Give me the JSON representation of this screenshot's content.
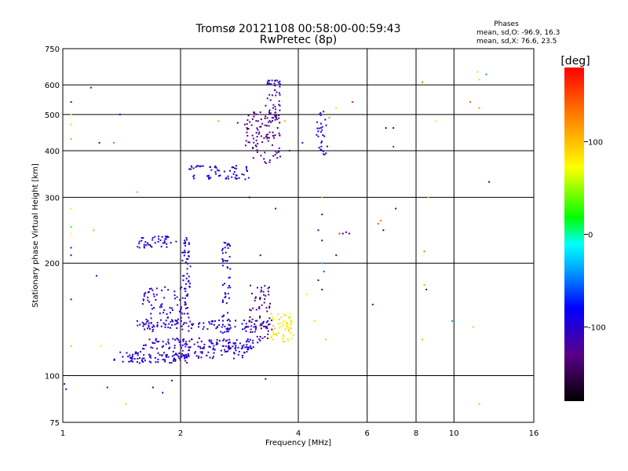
{
  "chart_data": {
    "type": "scatter",
    "title": "Tromsø 20121108 00:58:00-00:59:43",
    "subtitle": "RwPretec (8p)",
    "xlabel": "Frequency [MHz]",
    "ylabel": "Stationary phase Virtual Height [km]",
    "x_scale": "log",
    "y_scale": "log",
    "xlim": [
      1,
      16
    ],
    "ylim": [
      75,
      750
    ],
    "x_ticks": [
      "1",
      "2",
      "4",
      "6",
      "8",
      "10",
      "16"
    ],
    "x_tick_values": [
      1,
      2,
      4,
      6,
      8,
      10,
      16
    ],
    "y_ticks": [
      "75",
      "100",
      "200",
      "300",
      "400",
      "500",
      "600",
      "750"
    ],
    "y_tick_values": [
      75,
      100,
      200,
      300,
      400,
      500,
      600,
      750
    ],
    "grid": true,
    "stats_header": "Phases",
    "stats": [
      "mean, sd,O: -96.9, 16.3",
      "mean, sd,X:  76.6, 23.5"
    ],
    "colorbar": {
      "label": "[deg]",
      "range": [
        -180,
        180
      ],
      "ticks": [
        "100",
        "0",
        "-100"
      ],
      "tick_values": [
        100,
        0,
        -100
      ]
    },
    "clusters": [
      {
        "region": "low-band O trace",
        "x_range": [
          1.35,
          2.1
        ],
        "y_center": 112,
        "y_spread": 4,
        "phase": -100,
        "count": 90
      },
      {
        "region": "low-band lower ridge",
        "x_range": [
          2.0,
          3.0
        ],
        "y_center": 116,
        "y_spread": 5,
        "phase": -105,
        "count": 70
      },
      {
        "region": "mid ridge 120",
        "x_range": [
          1.6,
          3.2
        ],
        "y_center": 122,
        "y_spread": 4,
        "phase": -100,
        "count": 110
      },
      {
        "region": "ridge 135",
        "x_range": [
          1.55,
          3.5
        ],
        "y_center": 136,
        "y_spread": 5,
        "phase": -100,
        "count": 110
      },
      {
        "region": "rising trace 150-190",
        "x_range": [
          1.6,
          2.1
        ],
        "y_center": 155,
        "y_spread": 18,
        "phase": -100,
        "count": 80
      },
      {
        "region": "E cusp column",
        "x_range": [
          2.02,
          2.12
        ],
        "y_center": 190,
        "y_spread": 45,
        "phase": -100,
        "count": 50
      },
      {
        "region": "column 2.6",
        "x_range": [
          2.55,
          2.68
        ],
        "y_center": 180,
        "y_spread": 50,
        "phase": -95,
        "count": 55
      },
      {
        "region": "violet column 3.2",
        "x_range": [
          3.0,
          3.4
        ],
        "y_center": 150,
        "y_spread": 25,
        "phase": -130,
        "count": 60
      },
      {
        "region": "yellow-green X trace",
        "x_range": [
          3.4,
          3.9
        ],
        "y_center": 135,
        "y_spread": 12,
        "phase": 80,
        "count": 60
      },
      {
        "region": "1.6-2 band 225-240",
        "x_range": [
          1.55,
          1.95
        ],
        "y_center": 228,
        "y_spread": 8,
        "phase": -95,
        "count": 40
      },
      {
        "region": "F-layer 340-380",
        "x_range": [
          2.1,
          3.0
        ],
        "y_center": 350,
        "y_spread": 15,
        "phase": -100,
        "count": 60
      },
      {
        "region": "F-layer rising",
        "x_range": [
          2.9,
          3.6
        ],
        "y_center": 440,
        "y_spread": 70,
        "phase": -130,
        "count": 110
      },
      {
        "region": "F-layer cusp",
        "x_range": [
          3.3,
          3.6
        ],
        "y_center": 560,
        "y_spread": 60,
        "phase": -110,
        "count": 40
      },
      {
        "region": "4.5 column",
        "x_range": [
          4.45,
          4.75
        ],
        "y_center": 450,
        "y_spread": 60,
        "phase": -95,
        "count": 30
      }
    ],
    "sparse_points": [
      {
        "x": 1.05,
        "y": 540,
        "phase": -130
      },
      {
        "x": 1.05,
        "y": 500,
        "phase": 60
      },
      {
        "x": 1.05,
        "y": 470,
        "phase": 90
      },
      {
        "x": 1.05,
        "y": 430,
        "phase": 110
      },
      {
        "x": 1.05,
        "y": 280,
        "phase": 80
      },
      {
        "x": 1.05,
        "y": 250,
        "phase": 20
      },
      {
        "x": 1.05,
        "y": 240,
        "phase": 70
      },
      {
        "x": 1.05,
        "y": 220,
        "phase": -130
      },
      {
        "x": 1.05,
        "y": 210,
        "phase": -110
      },
      {
        "x": 1.05,
        "y": 160,
        "phase": -110
      },
      {
        "x": 1.05,
        "y": 120,
        "phase": 100
      },
      {
        "x": 1.01,
        "y": 95,
        "phase": -100
      },
      {
        "x": 1.02,
        "y": 92,
        "phase": -105
      },
      {
        "x": 1.18,
        "y": 590,
        "phase": -110
      },
      {
        "x": 1.2,
        "y": 245,
        "phase": 110
      },
      {
        "x": 1.22,
        "y": 185,
        "phase": -110
      },
      {
        "x": 1.24,
        "y": 420,
        "phase": -110
      },
      {
        "x": 1.25,
        "y": 120,
        "phase": 80
      },
      {
        "x": 1.35,
        "y": 420,
        "phase": 140
      },
      {
        "x": 1.4,
        "y": 500,
        "phase": -100
      },
      {
        "x": 1.55,
        "y": 310,
        "phase": 110
      },
      {
        "x": 1.55,
        "y": 140,
        "phase": -100
      },
      {
        "x": 1.8,
        "y": 90,
        "phase": -110
      },
      {
        "x": 1.7,
        "y": 93,
        "phase": -100
      },
      {
        "x": 1.9,
        "y": 97,
        "phase": -110
      },
      {
        "x": 1.3,
        "y": 93,
        "phase": -110
      },
      {
        "x": 1.45,
        "y": 84,
        "phase": 100
      },
      {
        "x": 2.5,
        "y": 480,
        "phase": 110
      },
      {
        "x": 2.8,
        "y": 475,
        "phase": -100
      },
      {
        "x": 3.0,
        "y": 300,
        "phase": -110
      },
      {
        "x": 3.2,
        "y": 210,
        "phase": -110
      },
      {
        "x": 3.5,
        "y": 280,
        "phase": -130
      },
      {
        "x": 3.3,
        "y": 98,
        "phase": -110
      },
      {
        "x": 3.7,
        "y": 480,
        "phase": 110
      },
      {
        "x": 3.8,
        "y": 400,
        "phase": -100
      },
      {
        "x": 4.1,
        "y": 420,
        "phase": -100
      },
      {
        "x": 4.6,
        "y": 300,
        "phase": 110
      },
      {
        "x": 4.6,
        "y": 270,
        "phase": -110
      },
      {
        "x": 4.5,
        "y": 245,
        "phase": -100
      },
      {
        "x": 4.6,
        "y": 230,
        "phase": -100
      },
      {
        "x": 4.6,
        "y": 200,
        "phase": -30
      },
      {
        "x": 4.65,
        "y": 190,
        "phase": -60
      },
      {
        "x": 4.5,
        "y": 180,
        "phase": -110
      },
      {
        "x": 4.6,
        "y": 170,
        "phase": -100
      },
      {
        "x": 4.7,
        "y": 125,
        "phase": 100
      },
      {
        "x": 4.4,
        "y": 140,
        "phase": 60
      },
      {
        "x": 4.2,
        "y": 165,
        "phase": 80
      },
      {
        "x": 4.8,
        "y": 490,
        "phase": 120
      },
      {
        "x": 5.0,
        "y": 520,
        "phase": 90
      },
      {
        "x": 5.0,
        "y": 210,
        "phase": -140
      },
      {
        "x": 5.1,
        "y": 240,
        "phase": 160
      },
      {
        "x": 5.2,
        "y": 240,
        "phase": -100
      },
      {
        "x": 5.3,
        "y": 242,
        "phase": -100
      },
      {
        "x": 5.4,
        "y": 240,
        "phase": -100
      },
      {
        "x": 5.5,
        "y": 540,
        "phase": 170
      },
      {
        "x": 6.2,
        "y": 155,
        "phase": -110
      },
      {
        "x": 6.4,
        "y": 255,
        "phase": 140
      },
      {
        "x": 6.5,
        "y": 260,
        "phase": 130
      },
      {
        "x": 6.6,
        "y": 245,
        "phase": -100
      },
      {
        "x": 6.7,
        "y": 460,
        "phase": -100
      },
      {
        "x": 7.0,
        "y": 460,
        "phase": -100
      },
      {
        "x": 7.0,
        "y": 410,
        "phase": -60
      },
      {
        "x": 7.1,
        "y": 280,
        "phase": -100
      },
      {
        "x": 8.3,
        "y": 610,
        "phase": 130
      },
      {
        "x": 8.4,
        "y": 215,
        "phase": 130
      },
      {
        "x": 8.4,
        "y": 175,
        "phase": 110
      },
      {
        "x": 8.5,
        "y": 170,
        "phase": -110
      },
      {
        "x": 8.6,
        "y": 300,
        "phase": 100
      },
      {
        "x": 8.3,
        "y": 125,
        "phase": 100
      },
      {
        "x": 9.9,
        "y": 140,
        "phase": -40
      },
      {
        "x": 11.0,
        "y": 540,
        "phase": 140
      },
      {
        "x": 11.2,
        "y": 135,
        "phase": 100
      },
      {
        "x": 11.5,
        "y": 650,
        "phase": 90
      },
      {
        "x": 11.6,
        "y": 620,
        "phase": 90
      },
      {
        "x": 11.6,
        "y": 520,
        "phase": 120
      },
      {
        "x": 12.1,
        "y": 640,
        "phase": -40
      },
      {
        "x": 12.3,
        "y": 330,
        "phase": -100
      },
      {
        "x": 11.6,
        "y": 84,
        "phase": 40
      },
      {
        "x": 9.0,
        "y": 480,
        "phase": 80
      }
    ]
  }
}
